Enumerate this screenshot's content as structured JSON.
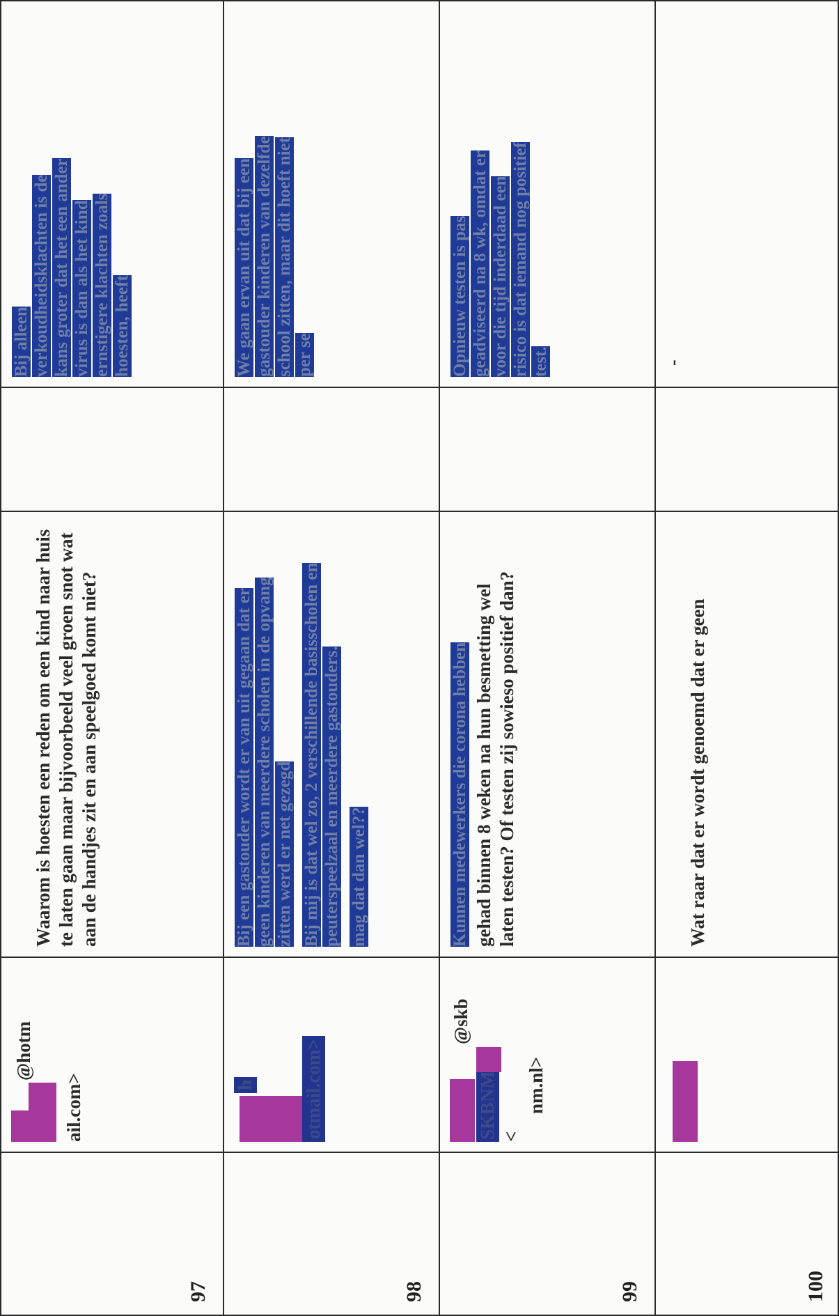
{
  "rows": [
    {
      "number": "97",
      "email_line1": "@hotm",
      "email_line2": "ail.com>",
      "question": "Waarom is hoesten een reden om een kind naar huis te laten gaan maar bijvoorbeeld veel groen snot wat aan de handjes zit en aan speelgoed komt niet?",
      "answer": "Bij alleen verkoudheidsklachten is de kans groter dat het een ander virus is dan als het kind ernstigere klachten zoals hoesten, heeft"
    },
    {
      "number": "98",
      "email_line1": "h",
      "email_line2": "otmail.com>",
      "question_paras": [
        "Bij een gastouder wordt er van uit gegaan dat er geen kinderen van meerdere scholen in de opvang zitten werd er net gezegd",
        "Bij mij is dat wel zo, 2 verschillende basisscholen en peuterspeelzaal en meerdere gastouders.",
        "mag dat dan wel??"
      ],
      "answer": "We gaan ervan uit dat bij een gastouder kinderen van dezelfde school zitten, maar dit hoeft niet per se"
    },
    {
      "number": "99",
      "email_line1": "@skb",
      "email_tag": "SKBNM",
      "email_line2": "<",
      "email_line3": "nm.nl>",
      "question_highlight": "Kunnen medewerkers die corona hebben",
      "question": "gehad binnen 8 weken na hun besmetting wel laten testen? Of testen zij sowieso positief dan?",
      "answer": "Opnieuw testen is pas geadviseerd na 8 wk, omdat er voor die tijd inderdaad een risico is dat iemand nog positief test."
    },
    {
      "number": "100",
      "question": "Wat raar dat er wordt genoemd dat er geen",
      "answer": "-"
    }
  ]
}
